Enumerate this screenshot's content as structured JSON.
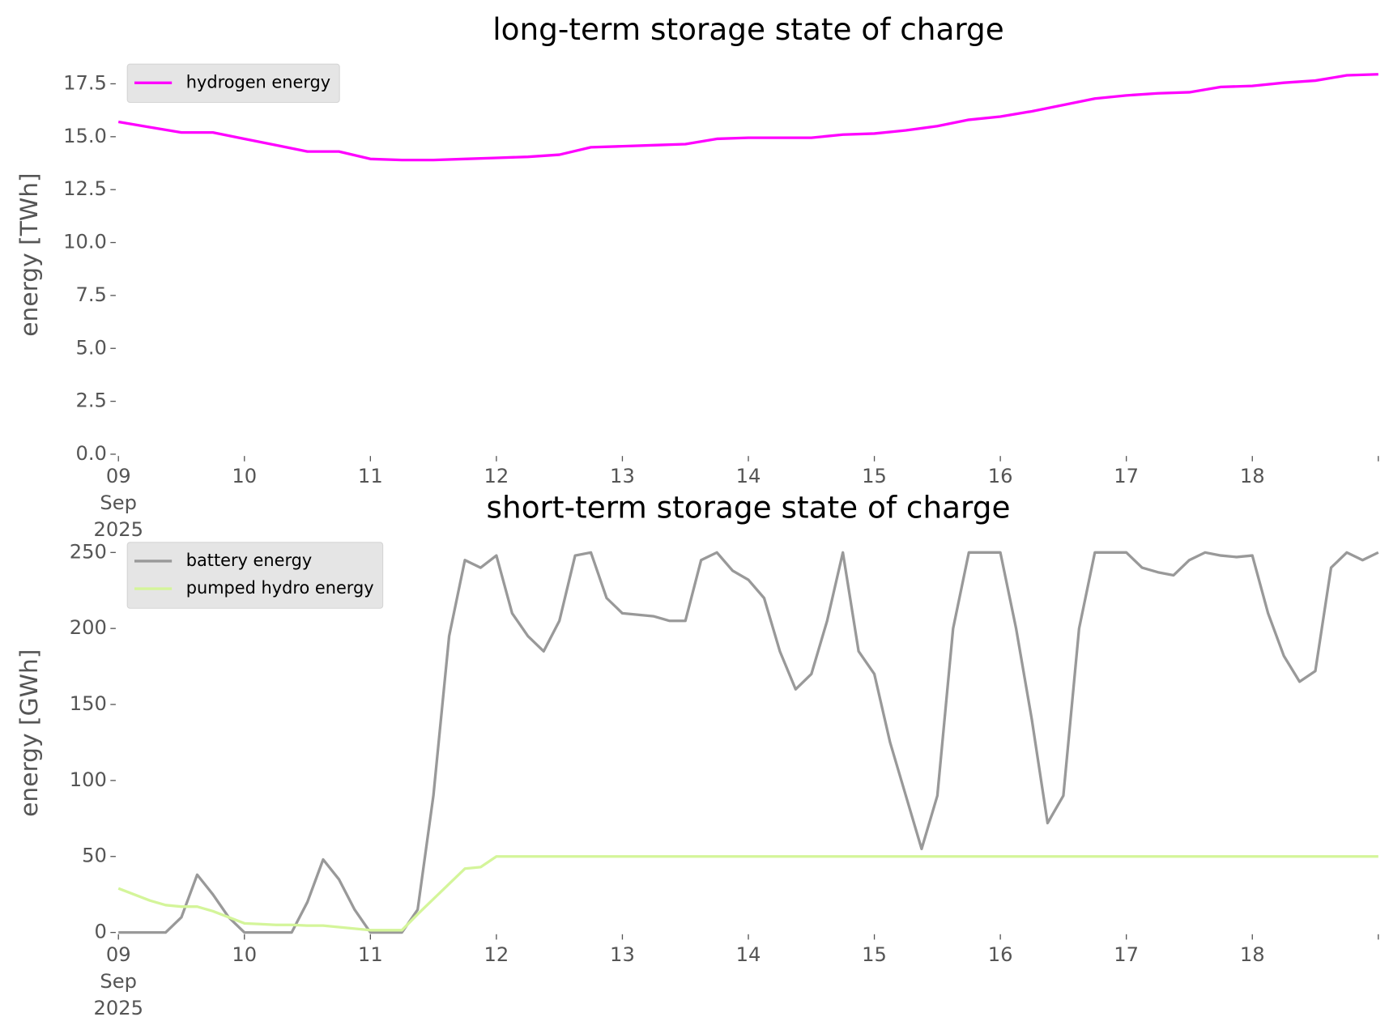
{
  "chart_data": [
    {
      "type": "line",
      "title": "long-term storage state of charge",
      "ylabel": "energy [TWh]",
      "x": [
        "2025-09-09 00:00",
        "2025-09-09 06:00",
        "2025-09-09 12:00",
        "2025-09-09 18:00",
        "2025-09-10 00:00",
        "2025-09-10 06:00",
        "2025-09-10 12:00",
        "2025-09-10 18:00",
        "2025-09-11 00:00",
        "2025-09-11 06:00",
        "2025-09-11 12:00",
        "2025-09-11 18:00",
        "2025-09-12 00:00",
        "2025-09-12 06:00",
        "2025-09-12 12:00",
        "2025-09-12 18:00",
        "2025-09-13 00:00",
        "2025-09-13 06:00",
        "2025-09-13 12:00",
        "2025-09-13 18:00",
        "2025-09-14 00:00",
        "2025-09-14 06:00",
        "2025-09-14 12:00",
        "2025-09-14 18:00",
        "2025-09-15 00:00",
        "2025-09-15 06:00",
        "2025-09-15 12:00",
        "2025-09-15 18:00",
        "2025-09-16 00:00",
        "2025-09-16 06:00",
        "2025-09-16 12:00",
        "2025-09-16 18:00",
        "2025-09-17 00:00",
        "2025-09-17 06:00",
        "2025-09-17 12:00",
        "2025-09-17 18:00",
        "2025-09-18 00:00",
        "2025-09-18 06:00",
        "2025-09-18 12:00",
        "2025-09-18 18:00",
        "2025-09-19 00:00"
      ],
      "series": [
        {
          "name": "hydrogen energy",
          "color": "#ff00ff",
          "values": [
            15.7,
            15.45,
            15.2,
            15.2,
            14.9,
            14.6,
            14.3,
            14.3,
            13.95,
            13.9,
            13.9,
            13.95,
            14.0,
            14.05,
            14.15,
            14.5,
            14.55,
            14.6,
            14.65,
            14.9,
            14.95,
            14.95,
            14.95,
            15.1,
            15.15,
            15.3,
            15.5,
            15.8,
            15.95,
            16.2,
            16.5,
            16.8,
            16.95,
            17.05,
            17.1,
            17.35,
            17.4,
            17.55,
            17.65,
            17.9,
            17.95
          ]
        }
      ],
      "xlim": [
        "2025-09-09",
        "2025-09-19"
      ],
      "xticks": [
        {
          "value": "2025-09-09",
          "label": "09\nSep\n2025"
        },
        {
          "value": "2025-09-10",
          "label": "10"
        },
        {
          "value": "2025-09-11",
          "label": "11"
        },
        {
          "value": "2025-09-12",
          "label": "12"
        },
        {
          "value": "2025-09-13",
          "label": "13"
        },
        {
          "value": "2025-09-14",
          "label": "14"
        },
        {
          "value": "2025-09-15",
          "label": "15"
        },
        {
          "value": "2025-09-16",
          "label": "16"
        },
        {
          "value": "2025-09-17",
          "label": "17"
        },
        {
          "value": "2025-09-18",
          "label": "18"
        },
        {
          "value": "2025-09-19",
          "label": null
        }
      ],
      "ylim": [
        0,
        18.85
      ],
      "yticks": [
        {
          "value": 0,
          "label": "0.0"
        },
        {
          "value": 2.5,
          "label": "2.5"
        },
        {
          "value": 5,
          "label": "5.0"
        },
        {
          "value": 7.5,
          "label": "7.5"
        },
        {
          "value": 10,
          "label": "10.0"
        },
        {
          "value": 12.5,
          "label": "12.5"
        },
        {
          "value": 15,
          "label": "15.0"
        },
        {
          "value": 17.5,
          "label": "17.5"
        }
      ],
      "legend": "upper left"
    },
    {
      "type": "line",
      "title": "short-term storage state of charge",
      "ylabel": "energy [GWh]",
      "x": [
        "2025-09-09 00:00",
        "2025-09-09 03:00",
        "2025-09-09 06:00",
        "2025-09-09 09:00",
        "2025-09-09 12:00",
        "2025-09-09 15:00",
        "2025-09-09 18:00",
        "2025-09-09 21:00",
        "2025-09-10 00:00",
        "2025-09-10 03:00",
        "2025-09-10 06:00",
        "2025-09-10 09:00",
        "2025-09-10 12:00",
        "2025-09-10 15:00",
        "2025-09-10 18:00",
        "2025-09-10 21:00",
        "2025-09-11 00:00",
        "2025-09-11 03:00",
        "2025-09-11 06:00",
        "2025-09-11 09:00",
        "2025-09-11 12:00",
        "2025-09-11 15:00",
        "2025-09-11 18:00",
        "2025-09-11 21:00",
        "2025-09-12 00:00",
        "2025-09-12 03:00",
        "2025-09-12 06:00",
        "2025-09-12 09:00",
        "2025-09-12 12:00",
        "2025-09-12 15:00",
        "2025-09-12 18:00",
        "2025-09-12 21:00",
        "2025-09-13 00:00",
        "2025-09-13 03:00",
        "2025-09-13 06:00",
        "2025-09-13 09:00",
        "2025-09-13 12:00",
        "2025-09-13 15:00",
        "2025-09-13 18:00",
        "2025-09-13 21:00",
        "2025-09-14 00:00",
        "2025-09-14 03:00",
        "2025-09-14 06:00",
        "2025-09-14 09:00",
        "2025-09-14 12:00",
        "2025-09-14 15:00",
        "2025-09-14 18:00",
        "2025-09-14 21:00",
        "2025-09-15 00:00",
        "2025-09-15 03:00",
        "2025-09-15 06:00",
        "2025-09-15 09:00",
        "2025-09-15 12:00",
        "2025-09-15 15:00",
        "2025-09-15 18:00",
        "2025-09-15 21:00",
        "2025-09-16 00:00",
        "2025-09-16 03:00",
        "2025-09-16 06:00",
        "2025-09-16 09:00",
        "2025-09-16 12:00",
        "2025-09-16 15:00",
        "2025-09-16 18:00",
        "2025-09-16 21:00",
        "2025-09-17 00:00",
        "2025-09-17 03:00",
        "2025-09-17 06:00",
        "2025-09-17 09:00",
        "2025-09-17 12:00",
        "2025-09-17 15:00",
        "2025-09-17 18:00",
        "2025-09-17 21:00",
        "2025-09-18 00:00",
        "2025-09-18 03:00",
        "2025-09-18 06:00",
        "2025-09-18 09:00",
        "2025-09-18 12:00",
        "2025-09-18 15:00",
        "2025-09-18 18:00",
        "2025-09-18 21:00",
        "2025-09-19 00:00"
      ],
      "series": [
        {
          "name": "battery energy",
          "color": "#999999",
          "values": [
            0,
            0,
            0,
            0,
            10,
            38,
            25,
            10,
            0,
            0,
            0,
            0,
            20,
            48,
            35,
            15,
            0,
            0,
            0,
            15,
            90,
            195,
            245,
            240,
            248,
            210,
            195,
            185,
            205,
            248,
            250,
            220,
            210,
            209,
            208,
            205,
            205,
            245,
            250,
            238,
            232,
            220,
            185,
            160,
            170,
            205,
            250,
            185,
            170,
            125,
            90,
            55,
            90,
            200,
            250,
            250,
            250,
            200,
            140,
            72,
            90,
            200,
            250,
            250,
            250,
            240,
            237,
            235,
            245,
            250,
            248,
            247,
            248,
            210,
            182,
            165,
            172,
            240,
            250,
            245,
            250
          ]
        },
        {
          "name": "pumped hydro energy",
          "color": "#d4f59a",
          "values": [
            29,
            25,
            21,
            18,
            17,
            17,
            14,
            10,
            6,
            5.5,
            5,
            5,
            4.5,
            4.5,
            3.5,
            2.5,
            1.5,
            1.5,
            1.5,
            12,
            22,
            32,
            42,
            43,
            50,
            50,
            50,
            50,
            50,
            50,
            50,
            50,
            50,
            50,
            50,
            50,
            50,
            50,
            50,
            50,
            50,
            50,
            50,
            50,
            50,
            50,
            50,
            50,
            50,
            50,
            50,
            50,
            50,
            50,
            50,
            50,
            50,
            50,
            50,
            50,
            50,
            50,
            50,
            50,
            50,
            50,
            50,
            50,
            50,
            50,
            50,
            50,
            50,
            50,
            50,
            50,
            50,
            50,
            50,
            50,
            50
          ]
        }
      ],
      "xlim": [
        "2025-09-09",
        "2025-09-19"
      ],
      "xticks": [
        {
          "value": "2025-09-09",
          "label": "09\nSep\n2025"
        },
        {
          "value": "2025-09-10",
          "label": "10"
        },
        {
          "value": "2025-09-11",
          "label": "11"
        },
        {
          "value": "2025-09-12",
          "label": "12"
        },
        {
          "value": "2025-09-13",
          "label": "13"
        },
        {
          "value": "2025-09-14",
          "label": "14"
        },
        {
          "value": "2025-09-15",
          "label": "15"
        },
        {
          "value": "2025-09-16",
          "label": "16"
        },
        {
          "value": "2025-09-17",
          "label": "17"
        },
        {
          "value": "2025-09-18",
          "label": "18"
        },
        {
          "value": "2025-09-19",
          "label": null
        }
      ],
      "ylim": [
        0,
        262.5
      ],
      "yticks": [
        0,
        50,
        100,
        150,
        200,
        250
      ],
      "legend": "upper left"
    }
  ]
}
